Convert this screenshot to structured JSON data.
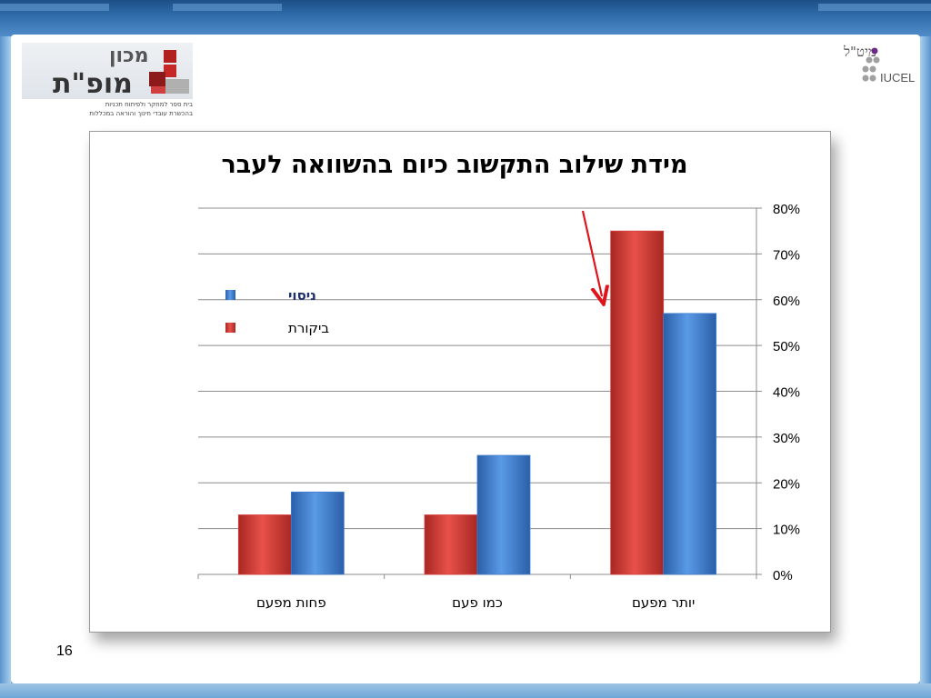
{
  "slide": {
    "page_number": "16",
    "logo_left": {
      "line1": "מכון",
      "line2": "מופ\"ת",
      "sub1": "בית ספר למחקר ולפיתוח תכניות",
      "sub2": "בהכשרת עובדי חינוך והוראה במכללות"
    },
    "logo_right": {
      "heb": "מיט\"ל",
      "eng": "IUCEL"
    }
  },
  "colors": {
    "series_control": "#d8403a",
    "series_experiment": "#3f7fd0",
    "arrow": "#e0141b"
  },
  "chart_data": {
    "type": "bar",
    "title": "מידת שילוב התקשוב כיום בהשוואה לעבר",
    "categories": [
      "פחות מפעם",
      "כמו פעם",
      "יותר מפעם"
    ],
    "series": [
      {
        "name": "ביקורת",
        "values": [
          0.13,
          0.13,
          0.75
        ]
      },
      {
        "name": "ניסוי",
        "values": [
          0.18,
          0.26,
          0.57
        ]
      }
    ],
    "ylim": [
      0,
      0.8
    ],
    "yticks": [
      "0%",
      "10%",
      "20%",
      "30%",
      "40%",
      "50%",
      "60%",
      "70%",
      "80%"
    ],
    "grid": true,
    "legend_position": "left",
    "annotation": "red arrow pointing to the ביקורת bar of יותר מפעם"
  }
}
